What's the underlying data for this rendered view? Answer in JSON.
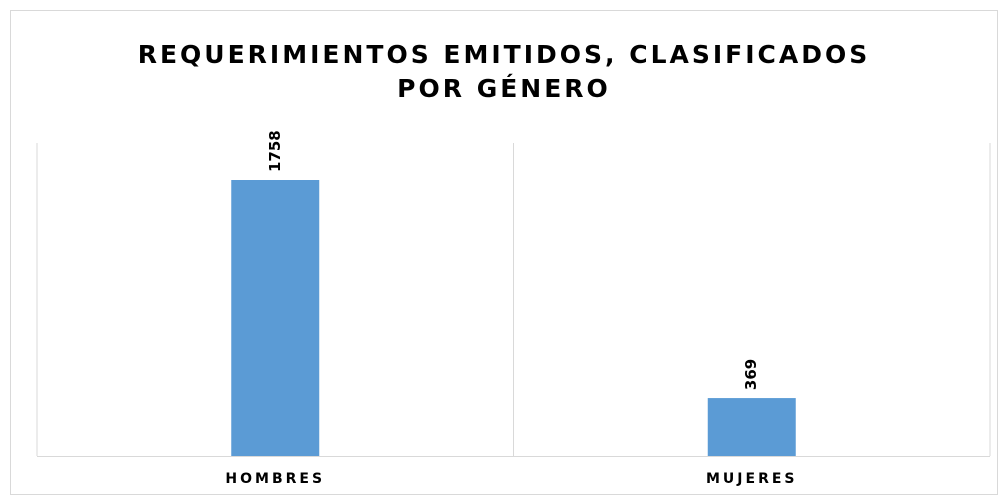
{
  "chart_data": {
    "type": "bar",
    "title": "REQUERIMIENTOS EMITIDOS, CLASIFICADOS POR GÉNERO",
    "categories": [
      "HOMBRES",
      "MUJERES"
    ],
    "values": [
      1758,
      369
    ],
    "color": "#5b9bd5"
  }
}
